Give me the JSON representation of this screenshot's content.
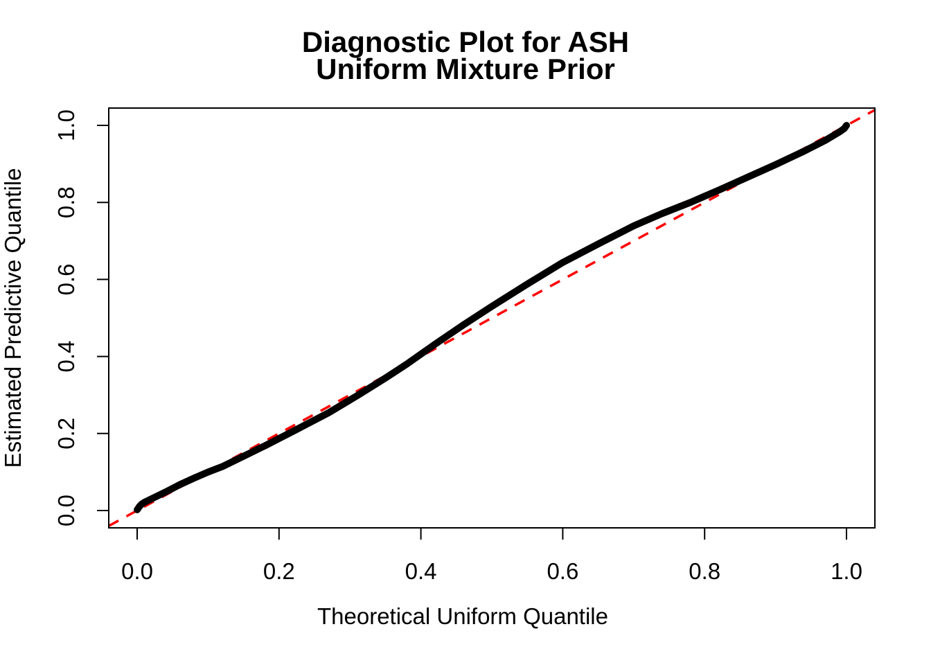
{
  "title": {
    "line1": "Diagnostic Plot for ASH",
    "line2": "Uniform Mixture Prior"
  },
  "axes": {
    "x": {
      "label": "Theoretical Uniform Quantile",
      "tick_labels": [
        "0.0",
        "0.2",
        "0.4",
        "0.6",
        "0.8",
        "1.0"
      ],
      "tick_values": [
        0,
        0.2,
        0.4,
        0.6,
        0.8,
        1.0
      ]
    },
    "y": {
      "label": "Estimated Predictive Quantile",
      "tick_labels": [
        "0.0",
        "0.2",
        "0.4",
        "0.6",
        "0.8",
        "1.0"
      ],
      "tick_values": [
        0,
        0.2,
        0.4,
        0.6,
        0.8,
        1.0
      ]
    }
  },
  "colors": {
    "curve": "#000000",
    "reference_line": "#FF0000",
    "axis": "#000000",
    "background": "#FFFFFF"
  },
  "chart_data": {
    "type": "line",
    "title": "Diagnostic Plot for ASH — Uniform Mixture Prior",
    "xlabel": "Theoretical Uniform Quantile",
    "ylabel": "Estimated Predictive Quantile",
    "xlim": [
      -0.04,
      1.04
    ],
    "ylim": [
      -0.04,
      1.04
    ],
    "grid": false,
    "legend": "none",
    "series": [
      {
        "name": "qq-curve",
        "style": "solid",
        "color": "#000000",
        "line_width": 10,
        "points": [
          [
            0.0,
            0.002
          ],
          [
            0.003,
            0.01
          ],
          [
            0.006,
            0.016
          ],
          [
            0.01,
            0.021
          ],
          [
            0.02,
            0.03
          ],
          [
            0.04,
            0.048
          ],
          [
            0.06,
            0.067
          ],
          [
            0.08,
            0.084
          ],
          [
            0.1,
            0.1
          ],
          [
            0.12,
            0.114
          ],
          [
            0.15,
            0.141
          ],
          [
            0.18,
            0.168
          ],
          [
            0.22,
            0.206
          ],
          [
            0.27,
            0.254
          ],
          [
            0.31,
            0.298
          ],
          [
            0.35,
            0.344
          ],
          [
            0.38,
            0.38
          ],
          [
            0.42,
            0.432
          ],
          [
            0.46,
            0.482
          ],
          [
            0.5,
            0.53
          ],
          [
            0.55,
            0.588
          ],
          [
            0.6,
            0.644
          ],
          [
            0.65,
            0.692
          ],
          [
            0.7,
            0.739
          ],
          [
            0.74,
            0.771
          ],
          [
            0.78,
            0.8
          ],
          [
            0.82,
            0.832
          ],
          [
            0.86,
            0.865
          ],
          [
            0.9,
            0.898
          ],
          [
            0.94,
            0.933
          ],
          [
            0.97,
            0.961
          ],
          [
            0.99,
            0.983
          ],
          [
            0.997,
            0.992
          ],
          [
            1.0,
            1.0
          ]
        ]
      },
      {
        "name": "reference-line",
        "style": "dashed",
        "color": "#FF0000",
        "line_width": 3.5,
        "points": [
          [
            -0.04,
            -0.04
          ],
          [
            1.04,
            1.04
          ]
        ]
      }
    ]
  }
}
